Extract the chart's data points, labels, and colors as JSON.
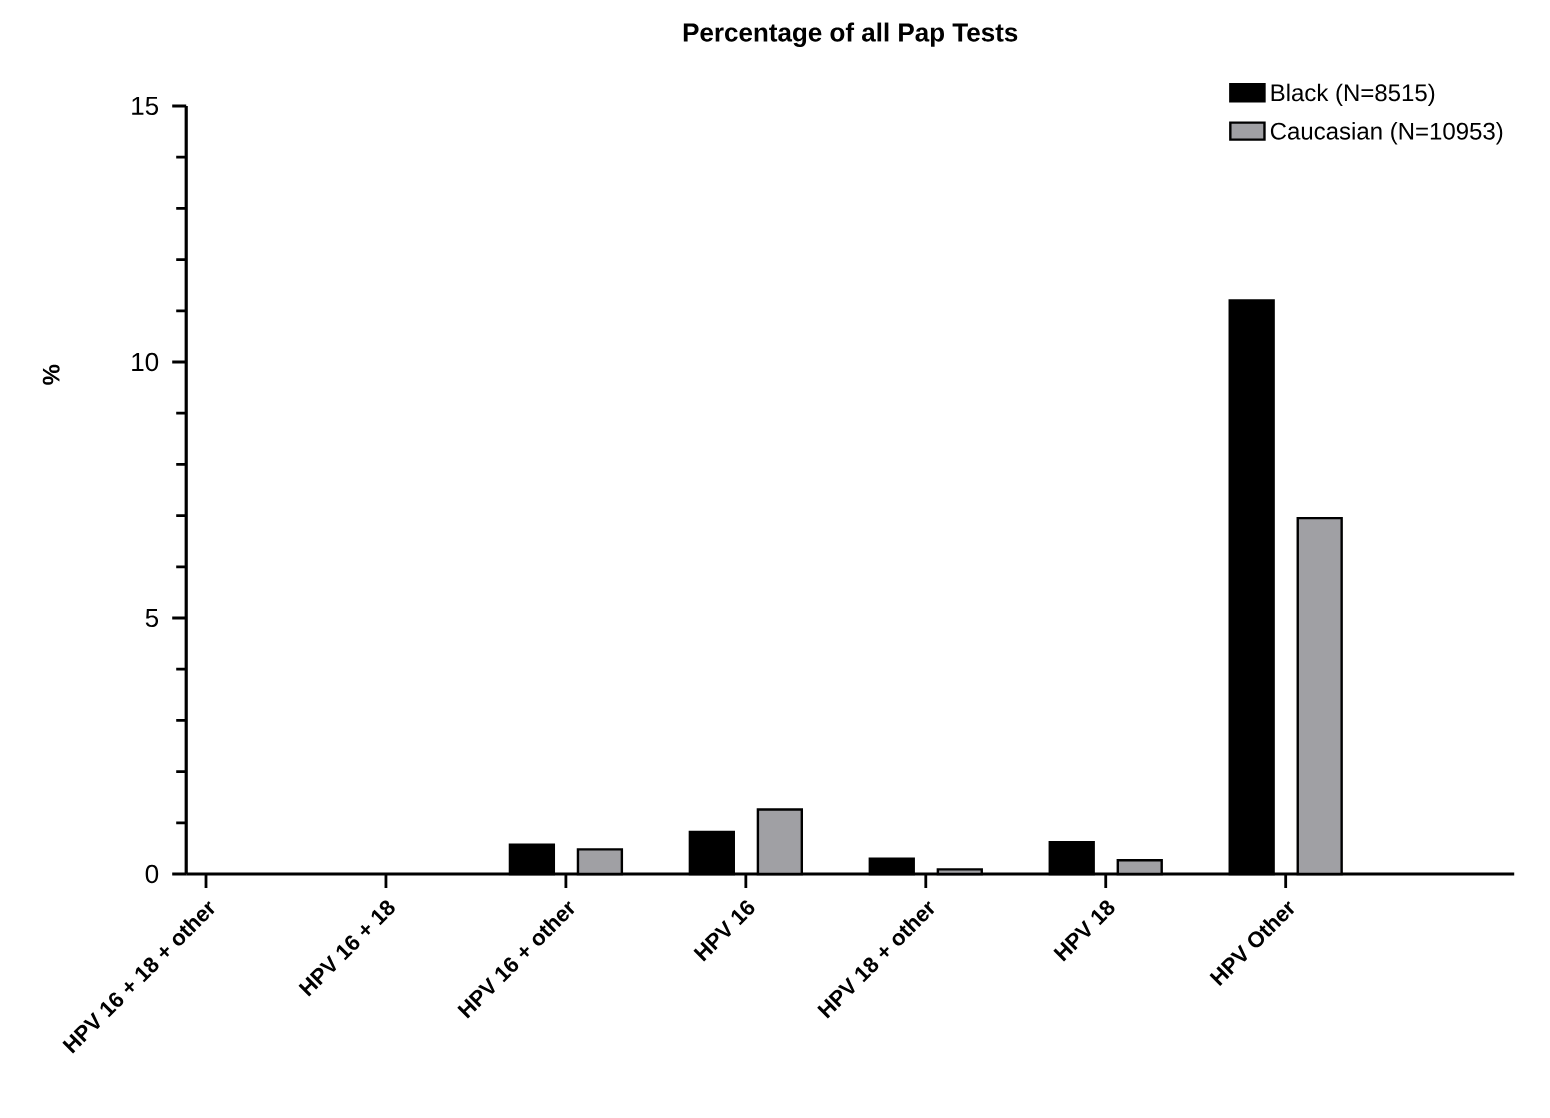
{
  "chart_data": {
    "type": "bar",
    "title": "Percentage of all Pap Tests",
    "ylabel": "%",
    "categories": [
      "HPV 16 + 18 + other",
      "HPV 16 + 18",
      "HPV 16 + other",
      "HPV 16",
      "HPV 18 + other",
      "HPV 18",
      "HPV Other"
    ],
    "series": [
      {
        "name": "Black (N=8515)",
        "color": "#000000",
        "values": [
          0,
          0,
          0.57,
          0.82,
          0.3,
          0.62,
          11.2
        ]
      },
      {
        "name": "Caucasian (N=10953)",
        "color": "#a0a0a4",
        "values": [
          0,
          0,
          0.48,
          1.26,
          0.09,
          0.27,
          6.95
        ]
      }
    ],
    "ylim": [
      0,
      15
    ],
    "yticks": [
      0,
      5,
      10,
      15
    ],
    "grid": false,
    "legend": "top right"
  }
}
